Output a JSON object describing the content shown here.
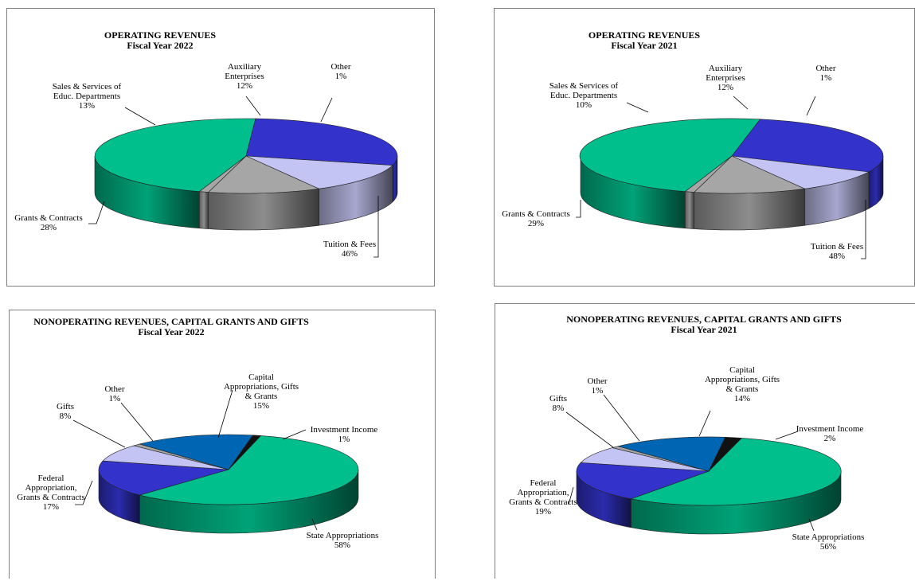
{
  "colors": {
    "tuition": "#00bf8c",
    "grants": "#3333cc",
    "sales": "#c4c4f4",
    "auxiliary": "#a6a6a6",
    "other": "#a6a6a6",
    "state": "#00bf8c",
    "capital": "#0066b3",
    "investment": "#111111",
    "federal": "#3333cc",
    "gifts": "#c4c4f4"
  },
  "chart_data": [
    {
      "type": "pie",
      "title": "OPERATING REVENUES",
      "subtitle": "Fiscal Year 2022",
      "slices": [
        {
          "label_lines": [
            "Tuition & Fees"
          ],
          "value": 46
        },
        {
          "label_lines": [
            "Grants & Contracts"
          ],
          "value": 28
        },
        {
          "label_lines": [
            "Sales & Services of",
            "Educ. Departments"
          ],
          "value": 13
        },
        {
          "label_lines": [
            "Auxiliary",
            "Enterprises"
          ],
          "value": 12
        },
        {
          "label_lines": [
            "Other"
          ],
          "value": 1
        }
      ]
    },
    {
      "type": "pie",
      "title": "OPERATING REVENUES",
      "subtitle": "Fiscal Year 2021",
      "slices": [
        {
          "label_lines": [
            "Tuition & Fees"
          ],
          "value": 48
        },
        {
          "label_lines": [
            "Grants & Contracts"
          ],
          "value": 29
        },
        {
          "label_lines": [
            "Sales & Services of",
            "Educ. Departments"
          ],
          "value": 10
        },
        {
          "label_lines": [
            "Auxiliary",
            "Enterprises"
          ],
          "value": 12
        },
        {
          "label_lines": [
            "Other"
          ],
          "value": 1
        }
      ]
    },
    {
      "type": "pie",
      "title": "NONOPERATING REVENUES, CAPITAL GRANTS AND GIFTS",
      "subtitle": "Fiscal Year 2022",
      "slices": [
        {
          "label_lines": [
            "State Appropriations"
          ],
          "value": 58
        },
        {
          "label_lines": [
            "Federal",
            "Appropriation,",
            "Grants & Contracts"
          ],
          "value": 17
        },
        {
          "label_lines": [
            "Gifts"
          ],
          "value": 8
        },
        {
          "label_lines": [
            "Other"
          ],
          "value": 1
        },
        {
          "label_lines": [
            "Capital",
            "Appropriations, Gifts",
            "& Grants"
          ],
          "value": 15
        },
        {
          "label_lines": [
            "Investment Income"
          ],
          "value": 1
        }
      ]
    },
    {
      "type": "pie",
      "title": "NONOPERATING REVENUES, CAPITAL GRANTS AND GIFTS",
      "subtitle": "Fiscal Year 2021",
      "slices": [
        {
          "label_lines": [
            "State Appropriations"
          ],
          "value": 56
        },
        {
          "label_lines": [
            "Federal",
            "Appropriation,",
            "Grants & Contracts"
          ],
          "value": 19
        },
        {
          "label_lines": [
            "Gifts"
          ],
          "value": 8
        },
        {
          "label_lines": [
            "Other"
          ],
          "value": 1
        },
        {
          "label_lines": [
            "Capital",
            "Appropriations, Gifts",
            "& Grants"
          ],
          "value": 14
        },
        {
          "label_lines": [
            "Investment Income"
          ],
          "value": 2
        }
      ]
    }
  ]
}
